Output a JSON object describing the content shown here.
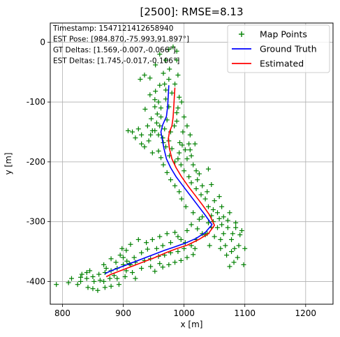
{
  "chart_data": {
    "type": "scatter",
    "title": "[2500]: RMSE=8.13",
    "xlabel": "x [m]",
    "ylabel": "y [m]",
    "xlim": [
      780,
      1245
    ],
    "ylim": [
      -438,
      32
    ],
    "xticks": [
      800,
      900,
      1000,
      1100,
      1200
    ],
    "yticks": [
      0,
      -100,
      -200,
      -300,
      -400
    ],
    "grid": true,
    "legend_placement": "top-right",
    "info_box": [
      "Timestamp: 1547121412658940",
      "EST Pose: [984.870,-75.993,91.897°]",
      "GT Deltas: [1.569,-0.007,-0.066°]",
      "EST Deltas: [1.745,-0.017,-0.106°]"
    ],
    "series": [
      {
        "name": "Map Points",
        "kind": "scatter",
        "marker": "+",
        "color": "#008000",
        "points": [
          [
            982,
            -8
          ],
          [
            975,
            -12
          ],
          [
            960,
            -20
          ],
          [
            988,
            -15
          ],
          [
            953,
            -38
          ],
          [
            970,
            -30
          ],
          [
            988,
            -30
          ],
          [
            935,
            -55
          ],
          [
            928,
            -62
          ],
          [
            944,
            -60
          ],
          [
            976,
            -45
          ],
          [
            960,
            -72
          ],
          [
            990,
            -55
          ],
          [
            966,
            -52
          ],
          [
            944,
            -88
          ],
          [
            953,
            -82
          ],
          [
            970,
            -80
          ],
          [
            992,
            -92
          ],
          [
            952,
            -96
          ],
          [
            936,
            -112
          ],
          [
            975,
            -108
          ],
          [
            990,
            -110
          ],
          [
            996,
            -100
          ],
          [
            956,
            -120
          ],
          [
            962,
            -125
          ],
          [
            972,
            -130
          ],
          [
            988,
            -118
          ],
          [
            940,
            -140
          ],
          [
            948,
            -148
          ],
          [
            945,
            -155
          ],
          [
            952,
            -148
          ],
          [
            960,
            -140
          ],
          [
            968,
            -145
          ],
          [
            978,
            -150
          ],
          [
            984,
            -140
          ],
          [
            998,
            -150
          ],
          [
            925,
            -145
          ],
          [
            915,
            -150
          ],
          [
            908,
            -148
          ],
          [
            965,
            -160
          ],
          [
            975,
            -165
          ],
          [
            942,
            -165
          ],
          [
            930,
            -170
          ],
          [
            993,
            -168
          ],
          [
            1002,
            -180
          ],
          [
            1010,
            -180
          ],
          [
            1018,
            -170
          ],
          [
            976,
            -190
          ],
          [
            985,
            -200
          ],
          [
            995,
            -205
          ],
          [
            990,
            -195
          ],
          [
            1000,
            -215
          ],
          [
            1008,
            -225
          ],
          [
            1025,
            -220
          ],
          [
            1020,
            -215
          ],
          [
            1012,
            -235
          ],
          [
            1020,
            -245
          ],
          [
            1028,
            -255
          ],
          [
            1035,
            -262
          ],
          [
            1050,
            -265
          ],
          [
            1040,
            -275
          ],
          [
            1045,
            -290
          ],
          [
            1055,
            -285
          ],
          [
            1065,
            -292
          ],
          [
            1030,
            -292
          ],
          [
            1062,
            -305
          ],
          [
            1072,
            -310
          ],
          [
            1085,
            -310
          ],
          [
            1055,
            -310
          ],
          [
            1045,
            -310
          ],
          [
            1038,
            -320
          ],
          [
            1050,
            -325
          ],
          [
            1060,
            -330
          ],
          [
            1068,
            -340
          ],
          [
            1078,
            -350
          ],
          [
            1083,
            -345
          ],
          [
            1088,
            -360
          ],
          [
            1082,
            -368
          ],
          [
            1098,
            -372
          ],
          [
            1070,
            -356
          ],
          [
            1090,
            -340
          ],
          [
            1100,
            -345
          ],
          [
            1030,
            -320
          ],
          [
            1020,
            -330
          ],
          [
            1012,
            -340
          ],
          [
            1000,
            -345
          ],
          [
            990,
            -350
          ],
          [
            978,
            -352
          ],
          [
            968,
            -356
          ],
          [
            958,
            -358
          ],
          [
            945,
            -362
          ],
          [
            935,
            -365
          ],
          [
            920,
            -368
          ],
          [
            910,
            -370
          ],
          [
            900,
            -372
          ],
          [
            890,
            -378
          ],
          [
            880,
            -382
          ],
          [
            870,
            -385
          ],
          [
            860,
            -388
          ],
          [
            850,
            -392
          ],
          [
            840,
            -395
          ],
          [
            830,
            -400
          ],
          [
            825,
            -405
          ],
          [
            810,
            -402
          ],
          [
            790,
            -405
          ],
          [
            832,
            -388
          ],
          [
            845,
            -382
          ],
          [
            842,
            -410
          ],
          [
            850,
            -412
          ],
          [
            862,
            -398
          ],
          [
            868,
            -372
          ],
          [
            880,
            -362
          ],
          [
            895,
            -356
          ],
          [
            905,
            -348
          ],
          [
            912,
            -338
          ],
          [
            925,
            -330
          ],
          [
            938,
            -335
          ],
          [
            948,
            -330
          ],
          [
            960,
            -325
          ],
          [
            972,
            -320
          ],
          [
            985,
            -318
          ],
          [
            995,
            -330
          ],
          [
            940,
            -346
          ],
          [
            930,
            -352
          ],
          [
            918,
            -360
          ],
          [
            906,
            -366
          ],
          [
            898,
            -345
          ],
          [
            888,
            -368
          ],
          [
            868,
            -400
          ],
          [
            878,
            -395
          ],
          [
            890,
            -395
          ],
          [
            903,
            -392
          ],
          [
            915,
            -385
          ],
          [
            930,
            -378
          ],
          [
            945,
            -375
          ],
          [
            960,
            -370
          ],
          [
            920,
            -395
          ],
          [
            1015,
            -355
          ],
          [
            1005,
            -360
          ],
          [
            995,
            -365
          ],
          [
            985,
            -368
          ],
          [
            975,
            -372
          ],
          [
            965,
            -376
          ],
          [
            952,
            -383
          ],
          [
            1002,
            -335
          ],
          [
            1018,
            -345
          ],
          [
            1035,
            -322
          ],
          [
            1040,
            -302
          ],
          [
            1025,
            -296
          ],
          [
            1015,
            -285
          ],
          [
            1003,
            -275
          ],
          [
            996,
            -262
          ],
          [
            992,
            -250
          ],
          [
            985,
            -240
          ],
          [
            978,
            -230
          ],
          [
            972,
            -218
          ],
          [
            966,
            -205
          ],
          [
            962,
            -193
          ],
          [
            958,
            -182
          ],
          [
            970,
            -175
          ],
          [
            980,
            -178
          ],
          [
            992,
            -185
          ],
          [
            1005,
            -195
          ],
          [
            1015,
            -205
          ],
          [
            1022,
            -230
          ],
          [
            1030,
            -240
          ],
          [
            1038,
            -250
          ],
          [
            1048,
            -280
          ],
          [
            1058,
            -295
          ],
          [
            1072,
            -298
          ],
          [
            1080,
            -320
          ],
          [
            1078,
            -330
          ],
          [
            1092,
            -322
          ],
          [
            1085,
            -302
          ],
          [
            1048,
            -300
          ],
          [
            952,
            -108
          ],
          [
            958,
            -100
          ],
          [
            946,
            -128
          ],
          [
            962,
            -110
          ],
          [
            970,
            -95
          ],
          [
            980,
            -85
          ],
          [
            985,
            -70
          ],
          [
            975,
            -62
          ],
          [
            968,
            -70
          ],
          [
            1000,
            -125
          ],
          [
            1005,
            -140
          ],
          [
            1010,
            -155
          ],
          [
            920,
            -160
          ],
          [
            930,
            -155
          ],
          [
            1008,
            -170
          ],
          [
            1012,
            -190
          ],
          [
            997,
            -172
          ],
          [
            935,
            -175
          ],
          [
            1040,
            -212
          ],
          [
            958,
            -155
          ],
          [
            966,
            -168
          ],
          [
            948,
            -185
          ],
          [
            955,
            -135
          ],
          [
            988,
            -132
          ],
          [
            1045,
            -238
          ],
          [
            1058,
            -258
          ],
          [
            1062,
            -275
          ],
          [
            1075,
            -285
          ],
          [
            1095,
            -315
          ],
          [
            1065,
            -320
          ],
          [
            1060,
            -345
          ],
          [
            1042,
            -340
          ],
          [
            1075,
            -375
          ],
          [
            893,
            -405
          ],
          [
            880,
            -408
          ],
          [
            870,
            -410
          ],
          [
            858,
            -415
          ],
          [
            905,
            -382
          ],
          [
            912,
            -372
          ],
          [
            885,
            -390
          ],
          [
            872,
            -378
          ],
          [
            955,
            -345
          ],
          [
            965,
            -340
          ],
          [
            978,
            -335
          ],
          [
            990,
            -325
          ],
          [
            1005,
            -315
          ],
          [
            1012,
            -305
          ],
          [
            1022,
            -312
          ],
          [
            852,
            -400
          ],
          [
            840,
            -385
          ],
          [
            830,
            -393
          ],
          [
            815,
            -395
          ],
          [
            900,
            -360
          ]
        ]
      },
      {
        "name": "Ground Truth",
        "kind": "line",
        "color": "#0000ff",
        "points": [
          [
            975,
            -72
          ],
          [
            974,
            -90
          ],
          [
            973,
            -108
          ],
          [
            971,
            -124
          ],
          [
            965,
            -138
          ],
          [
            962,
            -150
          ],
          [
            964,
            -162
          ],
          [
            967,
            -178
          ],
          [
            971,
            -195
          ],
          [
            978,
            -210
          ],
          [
            987,
            -225
          ],
          [
            998,
            -240
          ],
          [
            1010,
            -256
          ],
          [
            1022,
            -272
          ],
          [
            1034,
            -288
          ],
          [
            1046,
            -305
          ],
          [
            1035,
            -318
          ],
          [
            1020,
            -328
          ],
          [
            1002,
            -336
          ],
          [
            985,
            -342
          ],
          [
            968,
            -348
          ],
          [
            950,
            -355
          ],
          [
            932,
            -362
          ],
          [
            914,
            -369
          ],
          [
            896,
            -376
          ],
          [
            878,
            -383
          ],
          [
            870,
            -387
          ]
        ]
      },
      {
        "name": "Estimated",
        "kind": "line",
        "color": "#ff0000",
        "points": [
          [
            985,
            -76
          ],
          [
            984,
            -92
          ],
          [
            983,
            -110
          ],
          [
            982,
            -126
          ],
          [
            980,
            -140
          ],
          [
            976,
            -150
          ],
          [
            974,
            -162
          ],
          [
            976,
            -178
          ],
          [
            980,
            -195
          ],
          [
            987,
            -210
          ],
          [
            996,
            -225
          ],
          [
            1007,
            -241
          ],
          [
            1019,
            -257
          ],
          [
            1031,
            -273
          ],
          [
            1042,
            -289
          ],
          [
            1050,
            -306
          ],
          [
            1040,
            -320
          ],
          [
            1024,
            -330
          ],
          [
            1006,
            -339
          ],
          [
            988,
            -345
          ],
          [
            970,
            -352
          ],
          [
            952,
            -360
          ],
          [
            934,
            -367
          ],
          [
            916,
            -374
          ],
          [
            898,
            -381
          ],
          [
            880,
            -388
          ],
          [
            872,
            -392
          ]
        ]
      }
    ]
  }
}
